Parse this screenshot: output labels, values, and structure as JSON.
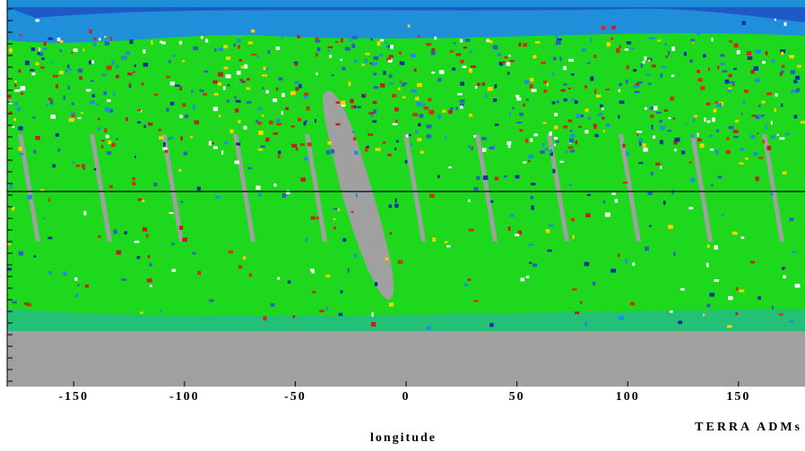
{
  "chart_data": {
    "type": "map",
    "xlabel": "longitude",
    "annotation": "TERRA ADMs",
    "xlim": [
      -180,
      180
    ],
    "xticks": [
      -150,
      -100,
      -50,
      0,
      50,
      100,
      150
    ]
  }
}
